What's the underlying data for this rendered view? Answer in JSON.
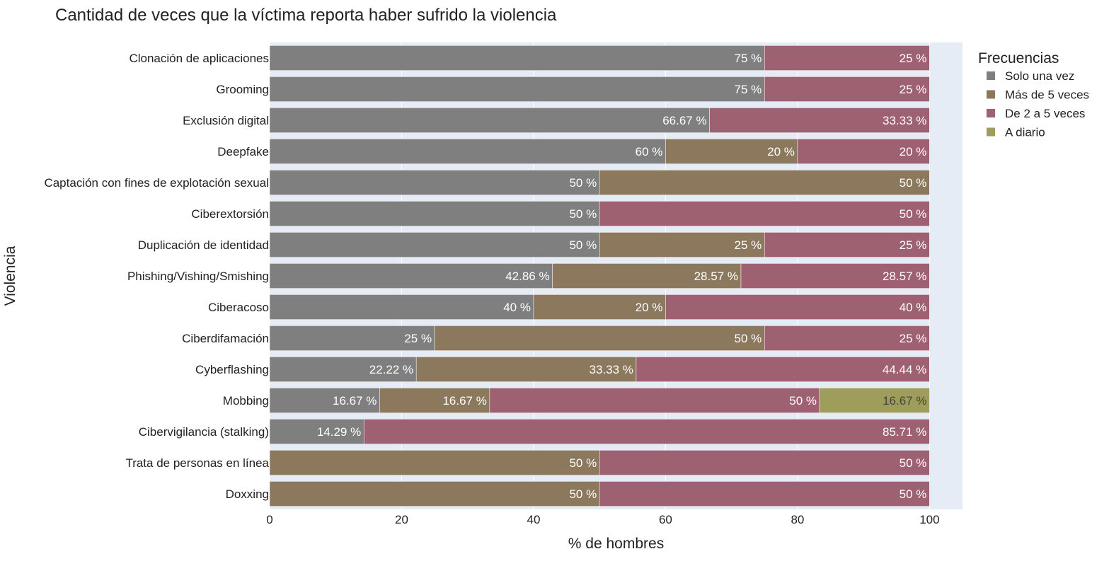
{
  "chart_data": {
    "type": "bar",
    "orientation": "horizontal",
    "stacked": true,
    "title": "Cantidad de veces que la víctima reporta haber sufrido la violencia",
    "xlabel": "% de hombres",
    "ylabel": "Violencia",
    "xlim": [
      0,
      105
    ],
    "xticks": [
      0,
      20,
      40,
      60,
      80,
      100
    ],
    "grid": true,
    "legend_title": "Frecuencias",
    "legend_position": "right",
    "categories": [
      "Clonación de aplicaciones",
      "Grooming",
      "Exclusión digital",
      "Deepfake",
      "Captación con fines de explotación sexual",
      "Ciberextorsión",
      "Duplicación de identidad",
      "Phishing/Vishing/Smishing",
      "Ciberacoso",
      "Ciberdifamación",
      "Cyberflashing",
      "Mobbing",
      "Cibervigilancia (stalking)",
      "Trata de personas en línea",
      "Doxxing"
    ],
    "series": [
      {
        "name": "Solo una vez",
        "color": "#7f7f7f",
        "label_color": "#ffffff",
        "values": [
          75,
          75,
          66.67,
          60,
          50,
          50,
          50,
          42.86,
          40,
          25,
          22.22,
          16.67,
          14.29,
          0,
          0
        ],
        "labels": [
          "75 %",
          "75 %",
          "66.67 %",
          "60 %",
          "50 %",
          "50 %",
          "50 %",
          "42.86 %",
          "40 %",
          "25 %",
          "22.22 %",
          "16.67 %",
          "14.29 %",
          "",
          ""
        ]
      },
      {
        "name": "Más de 5 veces",
        "color": "#8c785d",
        "label_color": "#ffffff",
        "values": [
          0,
          0,
          0,
          20,
          50,
          0,
          25,
          28.57,
          20,
          50,
          33.33,
          16.67,
          0,
          50,
          50
        ],
        "labels": [
          "",
          "",
          "",
          "20 %",
          "50 %",
          "",
          "25 %",
          "28.57 %",
          "20 %",
          "50 %",
          "33.33 %",
          "16.67 %",
          "",
          "50 %",
          "50 %"
        ]
      },
      {
        "name": "De 2 a 5 veces",
        "color": "#9e6172",
        "label_color": "#ffffff",
        "values": [
          25,
          25,
          33.33,
          20,
          0,
          50,
          25,
          28.57,
          40,
          25,
          44.44,
          50,
          85.71,
          50,
          50
        ],
        "labels": [
          "25 %",
          "25 %",
          "33.33 %",
          "20 %",
          "",
          "50 %",
          "25 %",
          "28.57 %",
          "40 %",
          "25 %",
          "44.44 %",
          "50 %",
          "85.71 %",
          "50 %",
          "50 %"
        ]
      },
      {
        "name": "A diario",
        "color": "#9e9d5c",
        "label_color": "#444444",
        "values": [
          0,
          0,
          0,
          0,
          0,
          0,
          0,
          0,
          0,
          0,
          0,
          16.67,
          0,
          0,
          0
        ],
        "labels": [
          "",
          "",
          "",
          "",
          "",
          "",
          "",
          "",
          "",
          "",
          "",
          "16.67 %",
          "",
          "",
          ""
        ]
      }
    ],
    "plot_background": "#e5ecf6",
    "grid_color": "#ffffff"
  }
}
